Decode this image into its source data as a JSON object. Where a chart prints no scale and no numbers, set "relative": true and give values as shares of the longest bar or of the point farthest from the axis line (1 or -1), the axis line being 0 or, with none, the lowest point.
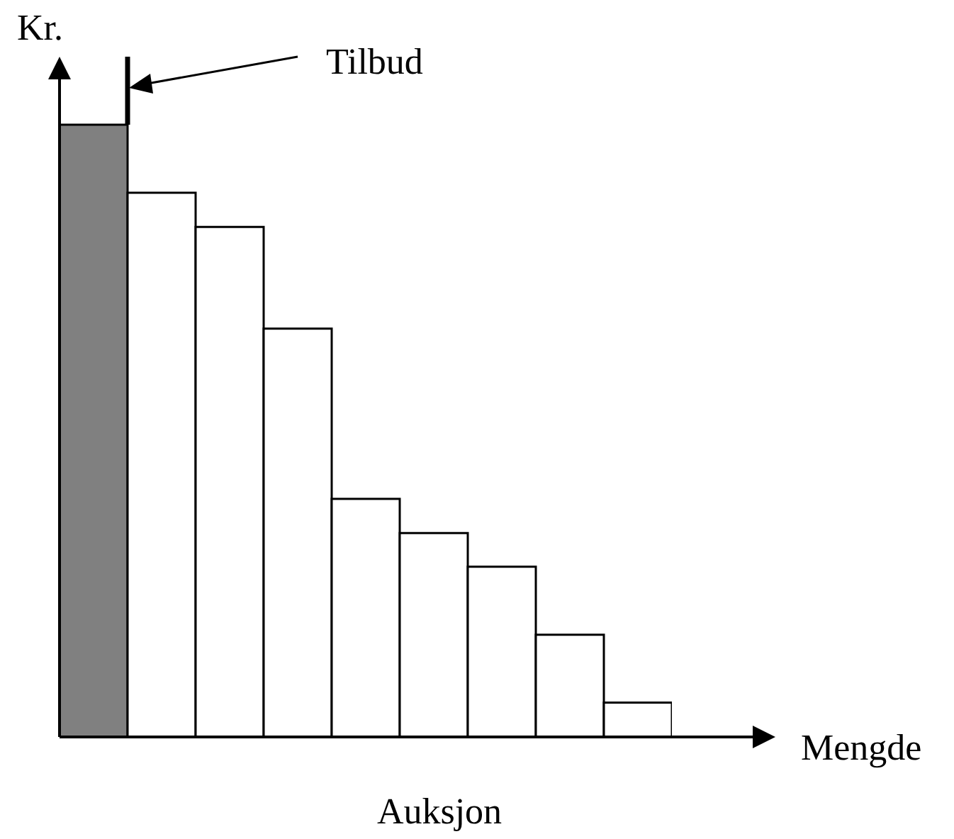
{
  "chart_data": {
    "type": "bar",
    "title": "Auksjon",
    "xlabel": "Mengde",
    "ylabel": "Kr.",
    "relative": true,
    "categories": [
      null,
      null,
      null,
      null,
      null,
      null,
      null,
      null,
      null
    ],
    "values": [
      1,
      0.889,
      0.833,
      0.667,
      0.389,
      0.333,
      0.278,
      0.167,
      0.056
    ],
    "colors": [
      "#808080",
      "#ffffff",
      "#ffffff",
      "#ffffff",
      "#ffffff",
      "#ffffff",
      "#ffffff",
      "#ffffff",
      "#ffffff"
    ],
    "annotations": [
      "Tilbud"
    ],
    "grid": false
  }
}
